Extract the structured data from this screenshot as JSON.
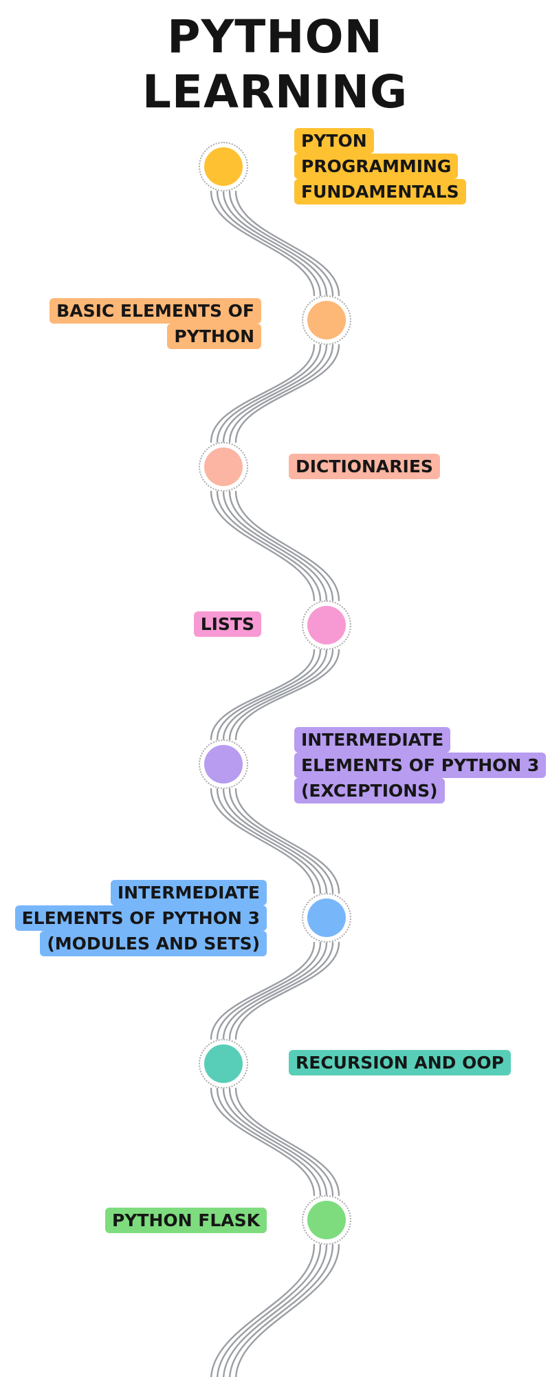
{
  "title": {
    "line1": "PYTHON",
    "line2": "LEARNING"
  },
  "milestones": [
    {
      "id": "fundamentals",
      "color": "#FEC132",
      "lines": [
        "PYTON",
        "PROGRAMMING",
        "FUNDAMENTALS"
      ]
    },
    {
      "id": "basic-elements",
      "color": "#FDB777",
      "lines": [
        "BASIC ELEMENTS OF",
        "PYTHON"
      ]
    },
    {
      "id": "dictionaries",
      "color": "#FBB5A2",
      "lines": [
        "DICTIONARIES"
      ]
    },
    {
      "id": "lists",
      "color": "#F79AD3",
      "lines": [
        "LISTS"
      ]
    },
    {
      "id": "exceptions",
      "color": "#B79CF0",
      "lines": [
        "INTERMEDIATE",
        "ELEMENTS OF PYTHON 3",
        "(EXCEPTIONS)"
      ]
    },
    {
      "id": "modules-sets",
      "color": "#78B6FA",
      "lines": [
        "INTERMEDIATE",
        "ELEMENTS OF PYTHON 3",
        "(MODULES AND SETS)"
      ]
    },
    {
      "id": "recursion-oop",
      "color": "#58CEB8",
      "lines": [
        "RECURSION AND OOP"
      ]
    },
    {
      "id": "flask",
      "color": "#7EDC7E",
      "lines": [
        "PYTHON FLASK"
      ]
    }
  ]
}
